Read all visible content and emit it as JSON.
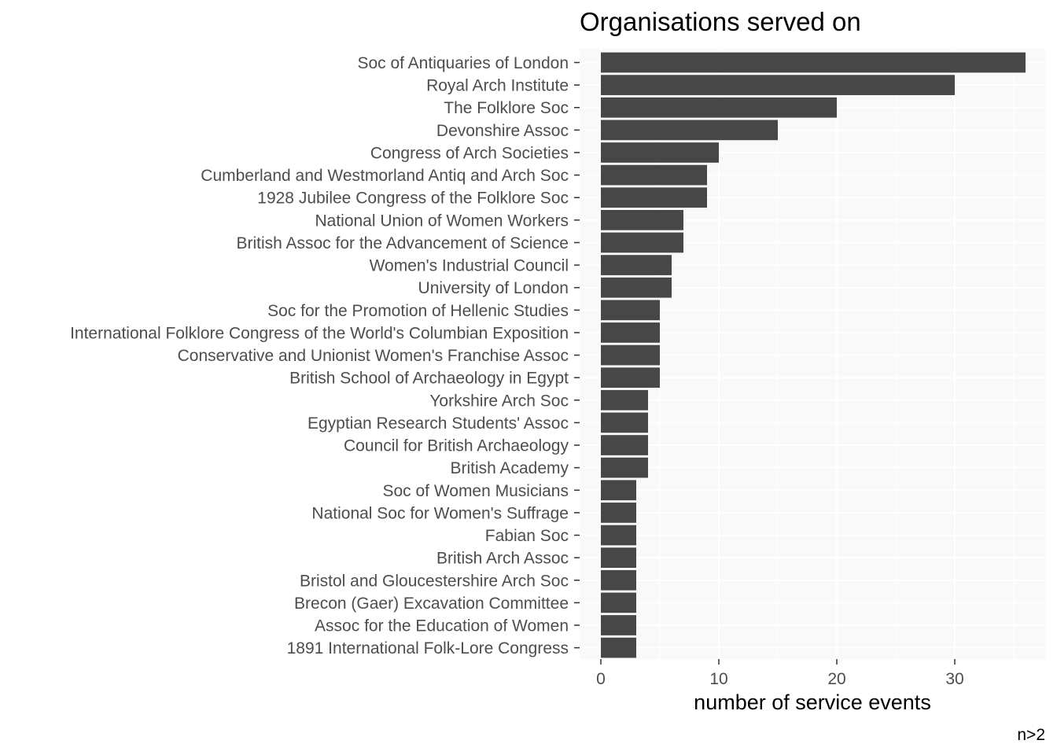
{
  "chart_data": {
    "type": "bar",
    "orientation": "horizontal",
    "title": "Organisations served on",
    "xlabel": "number of service events",
    "ylabel": "",
    "caption": "n>2",
    "xlim": [
      0,
      37.8
    ],
    "xticks": [
      0,
      10,
      20,
      30
    ],
    "grid": true,
    "bar_color": "#474747",
    "panel_background": "#f9f9f9",
    "categories": [
      "Soc of Antiquaries of London",
      "Royal Arch Institute",
      "The Folklore Soc",
      "Devonshire Assoc",
      "Congress of Arch Societies",
      "Cumberland and Westmorland Antiq and Arch Soc",
      "1928 Jubilee Congress of the Folklore Soc",
      "National Union of Women Workers",
      "British Assoc for the Advancement of Science",
      "Women's Industrial Council",
      "University of London",
      "Soc for the Promotion of Hellenic Studies",
      "International Folklore Congress of the World's Columbian Exposition",
      "Conservative and Unionist Women's Franchise Assoc",
      "British School of Archaeology in Egypt",
      "Yorkshire Arch Soc",
      "Egyptian Research Students' Assoc",
      "Council for British Archaeology",
      "British Academy",
      "Soc of Women Musicians",
      "National Soc for Women's Suffrage",
      "Fabian Soc",
      "British Arch Assoc",
      "Bristol and Gloucestershire Arch Soc",
      "Brecon (Gaer) Excavation Committee",
      "Assoc for the Education of Women",
      "1891 International Folk-Lore Congress"
    ],
    "values": [
      36,
      30,
      20,
      15,
      10,
      9,
      9,
      7,
      7,
      6,
      6,
      5,
      5,
      5,
      5,
      4,
      4,
      4,
      4,
      3,
      3,
      3,
      3,
      3,
      3,
      3,
      3
    ]
  }
}
